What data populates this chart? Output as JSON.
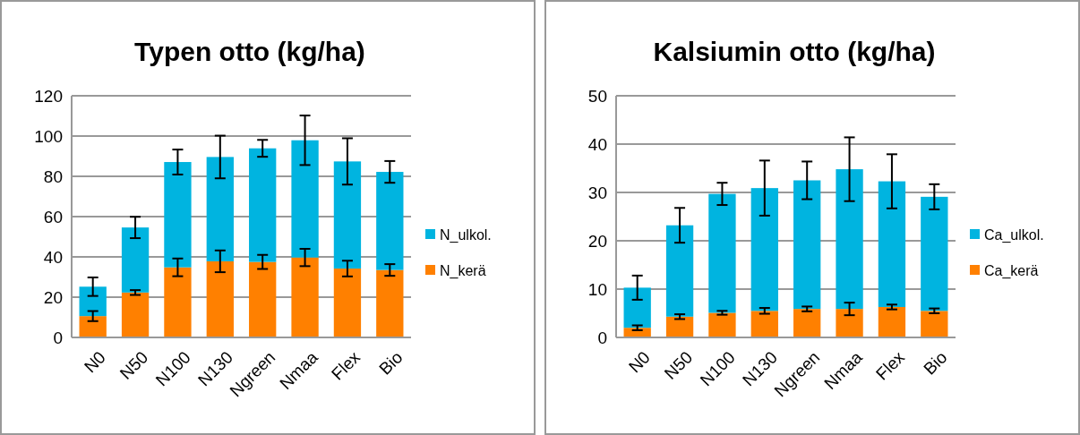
{
  "chart_data": [
    {
      "type": "bar",
      "title": "Typen otto (kg/ha)",
      "stacked": true,
      "categories": [
        "N0",
        "N50",
        "N100",
        "N130",
        "Ngreen",
        "Nmaa",
        "Flex",
        "Bio"
      ],
      "ylim": [
        0,
        120
      ],
      "yticks": [
        0,
        20,
        40,
        60,
        80,
        100,
        120
      ],
      "grid": "y",
      "legend": "right",
      "series": [
        {
          "name": "N_kerä",
          "color": "#ff8000",
          "values": [
            10.6,
            22.3,
            34.8,
            37.8,
            37.5,
            39.7,
            34.2,
            33.5
          ],
          "errors": [
            2.5,
            1.2,
            4.4,
            5.4,
            3.5,
            4.3,
            3.9,
            2.9
          ]
        },
        {
          "name": "N_ulkol.",
          "color": "#00b4e0",
          "values": [
            14.6,
            32.3,
            52.3,
            51.8,
            56.4,
            58.2,
            53.2,
            48.7
          ],
          "errors": [
            4.6,
            5.3,
            6.2,
            10.6,
            4.2,
            12.3,
            11.5,
            5.4
          ]
        }
      ]
    },
    {
      "type": "bar",
      "title": "Kalsiumin otto (kg/ha)",
      "stacked": true,
      "categories": [
        "N0",
        "N50",
        "N100",
        "N130",
        "Ngreen",
        "Nmaa",
        "Flex",
        "Bio"
      ],
      "ylim": [
        0,
        50
      ],
      "yticks": [
        0,
        10,
        20,
        30,
        40,
        50
      ],
      "grid": "y",
      "legend": "right",
      "series": [
        {
          "name": "Ca_kerä",
          "color": "#ff8000",
          "values": [
            2.0,
            4.3,
            5.1,
            5.5,
            5.9,
            5.9,
            6.3,
            5.5
          ],
          "errors": [
            0.5,
            0.5,
            0.4,
            0.6,
            0.5,
            1.3,
            0.5,
            0.5
          ]
        },
        {
          "name": "Ca_ulkol.",
          "color": "#00b4e0",
          "values": [
            8.3,
            18.9,
            24.6,
            25.4,
            26.6,
            28.9,
            26.0,
            23.6
          ],
          "errors": [
            2.5,
            3.6,
            2.3,
            5.7,
            3.9,
            6.6,
            5.6,
            2.6
          ]
        }
      ]
    }
  ]
}
